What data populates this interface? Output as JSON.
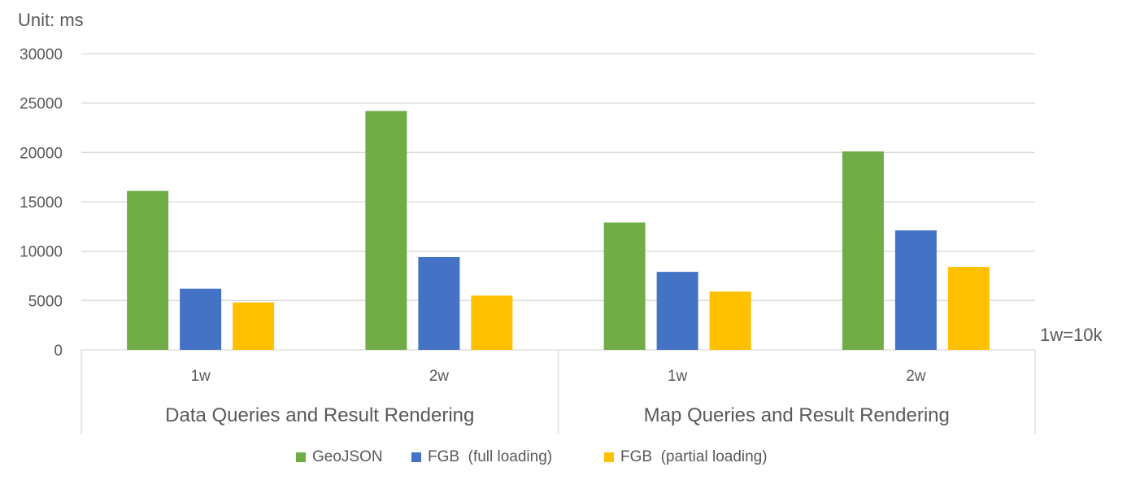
{
  "chart_data": {
    "type": "bar",
    "unit_label": "Unit: ms",
    "note": "1w=10k",
    "groups": [
      {
        "label": "Data Queries and Result Rendering",
        "categories": [
          "1w",
          "2w"
        ]
      },
      {
        "label": "Map Queries and Result Rendering",
        "categories": [
          "1w",
          "2w"
        ]
      }
    ],
    "categories": [
      "1w",
      "2w",
      "1w",
      "2w"
    ],
    "series": [
      {
        "name": "GeoJSON",
        "color": "#70ad47",
        "values": [
          16100,
          24200,
          12900,
          20100
        ]
      },
      {
        "name": "FGB  (full loading)",
        "color": "#4472c4",
        "values": [
          6200,
          9400,
          7900,
          12100
        ]
      },
      {
        "name": "FGB  (partial loading)",
        "color": "#ffc000",
        "values": [
          4800,
          5500,
          5900,
          8400
        ]
      }
    ],
    "ylim": [
      0,
      30000
    ],
    "yticks": [
      "0",
      "5000",
      "10000",
      "15000",
      "20000",
      "25000",
      "30000"
    ],
    "grid": true,
    "legend_position": "bottom"
  }
}
